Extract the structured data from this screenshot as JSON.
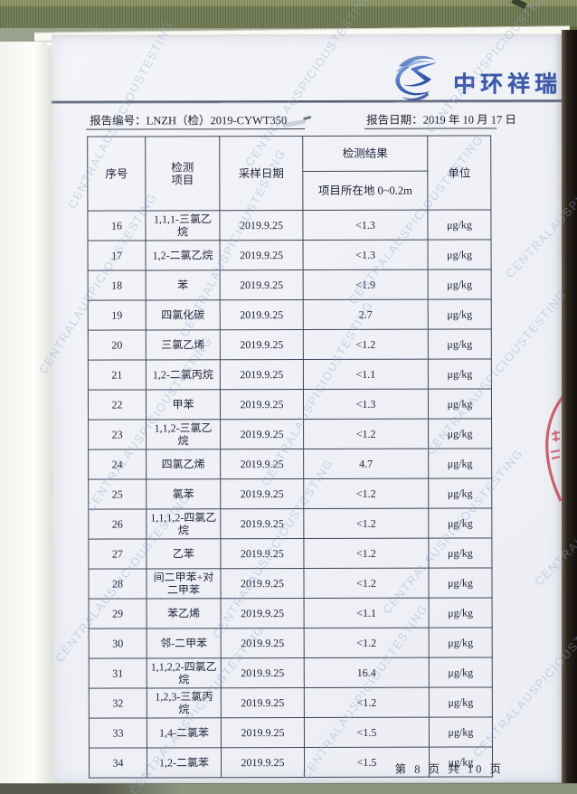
{
  "brand": {
    "name": "中环祥瑞",
    "logo_icon": "swirl-logo"
  },
  "meta": {
    "report_no_label": "报告编号：",
    "report_no": "LNZH（检）2019-CYWT350",
    "report_date_label": "报告日期：",
    "report_date": "2019 年 10 月 17 日"
  },
  "table": {
    "headers": {
      "no": "序号",
      "item": "检测\n项目",
      "date": "采样日期",
      "result_group": "检测结果",
      "result_sub": "项目所在地 0~0.2m",
      "unit": "单位"
    },
    "rows": [
      {
        "no": "16",
        "item": "1,1,1-三氯乙烷",
        "date": "2019.9.25",
        "result": "<1.3",
        "unit": "μg/kg"
      },
      {
        "no": "17",
        "item": "1,2-二氯乙烷",
        "date": "2019.9.25",
        "result": "<1.3",
        "unit": "μg/kg"
      },
      {
        "no": "18",
        "item": "苯",
        "date": "2019.9.25",
        "result": "<1.9",
        "unit": "μg/kg"
      },
      {
        "no": "19",
        "item": "四氯化碳",
        "date": "2019.9.25",
        "result": "2.7",
        "unit": "μg/kg"
      },
      {
        "no": "20",
        "item": "三氯乙烯",
        "date": "2019.9.25",
        "result": "<1.2",
        "unit": "μg/kg"
      },
      {
        "no": "21",
        "item": "1,2-二氯丙烷",
        "date": "2019.9.25",
        "result": "<1.1",
        "unit": "μg/kg"
      },
      {
        "no": "22",
        "item": "甲苯",
        "date": "2019.9.25",
        "result": "<1.3",
        "unit": "μg/kg"
      },
      {
        "no": "23",
        "item": "1,1,2-三氯乙烷",
        "date": "2019.9.25",
        "result": "<1.2",
        "unit": "μg/kg"
      },
      {
        "no": "24",
        "item": "四氯乙烯",
        "date": "2019.9.25",
        "result": "4.7",
        "unit": "μg/kg"
      },
      {
        "no": "25",
        "item": "氯苯",
        "date": "2019.9.25",
        "result": "<1.2",
        "unit": "μg/kg"
      },
      {
        "no": "26",
        "item": "1,1,1,2-四氯乙烷",
        "date": "2019.9.25",
        "result": "<1.2",
        "unit": "μg/kg"
      },
      {
        "no": "27",
        "item": "乙苯",
        "date": "2019.9.25",
        "result": "<1.2",
        "unit": "μg/kg"
      },
      {
        "no": "28",
        "item": "间二甲苯+对二甲苯",
        "date": "2019.9.25",
        "result": "<1.2",
        "unit": "μg/kg"
      },
      {
        "no": "29",
        "item": "苯乙烯",
        "date": "2019.9.25",
        "result": "<1.1",
        "unit": "μg/kg"
      },
      {
        "no": "30",
        "item": "邻-二甲苯",
        "date": "2019.9.25",
        "result": "<1.2",
        "unit": "μg/kg"
      },
      {
        "no": "31",
        "item": "1,1,2,2-四氯乙烷",
        "date": "2019.9.25",
        "result": "16.4",
        "unit": "μg/kg"
      },
      {
        "no": "32",
        "item": "1,2,3-三氯丙烷",
        "date": "2019.9.25",
        "result": "<1.2",
        "unit": "μg/kg"
      },
      {
        "no": "33",
        "item": "1,4-二氯苯",
        "date": "2019.9.25",
        "result": "<1.5",
        "unit": "μg/kg"
      },
      {
        "no": "34",
        "item": "1,2-二氯苯",
        "date": "2019.9.25",
        "result": "<1.5",
        "unit": "μg/kg"
      }
    ]
  },
  "footer": {
    "page_info": "第 8 页 共 10 页"
  },
  "watermark": {
    "text": "CENTRALAUSPICIOUSTESTING"
  },
  "colors": {
    "brand_blue": "#3a57a8",
    "watermark_blue": "#93a5d2",
    "stamp_red": "#c84556",
    "scanner_olive": "#6e7850",
    "paper": "#eff1f6"
  }
}
